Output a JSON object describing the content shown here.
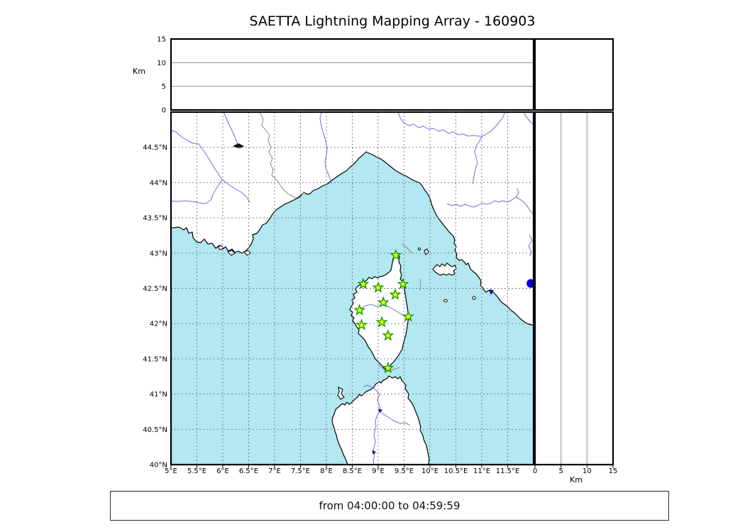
{
  "title": "SAETTA Lightning Mapping Array - 160903",
  "footer": {
    "time_range": "from 04:00:00 to 04:59:59"
  },
  "colors": {
    "sea": "#b3e7f2",
    "land": "#ffffff",
    "coast": "#000000",
    "river": "#6f6fd8",
    "admin_border": "#8a8a8a",
    "map_grid": "#777777",
    "panel_grid": "#8f8f8f",
    "station_fill": "#ffff00",
    "station_edge": "#009900",
    "event_dot": "#0000d5",
    "lake": "#00188c"
  },
  "chart_data": {
    "type": "scatter",
    "title": "SAETTA Lightning Mapping Array - 160903",
    "subtitle": "from 04:00:00 to 04:59:59",
    "layout": "LMA three-panel: altitude-vs-longitude (top), map (center), altitude-vs-latitude (right), empty corner panel",
    "map_panel": {
      "lon_range": [
        5,
        12
      ],
      "lat_range": [
        40,
        45
      ],
      "grid": true,
      "lon_ticks": [
        {
          "label": "5°E",
          "value": 5
        },
        {
          "label": "5.5°E",
          "value": 5.5
        },
        {
          "label": "6°E",
          "value": 6
        },
        {
          "label": "6.5°E",
          "value": 6.5
        },
        {
          "label": "7°E",
          "value": 7
        },
        {
          "label": "7.5°E",
          "value": 7.5
        },
        {
          "label": "8°E",
          "value": 8
        },
        {
          "label": "8.5°E",
          "value": 8.5
        },
        {
          "label": "9°E",
          "value": 9
        },
        {
          "label": "9.5°E",
          "value": 9.5
        },
        {
          "label": "10°E",
          "value": 10
        },
        {
          "label": "10.5°E",
          "value": 10.5
        },
        {
          "label": "11°E",
          "value": 11
        },
        {
          "label": "11.5°E",
          "value": 11.5
        }
      ],
      "lat_ticks": [
        {
          "label": "44.5°N",
          "value": 44.5
        },
        {
          "label": "44°N",
          "value": 44
        },
        {
          "label": "43.5°N",
          "value": 43.5
        },
        {
          "label": "43°N",
          "value": 43
        },
        {
          "label": "42.5°N",
          "value": 42.5
        },
        {
          "label": "42°N",
          "value": 42
        },
        {
          "label": "41.5°N",
          "value": 41.5
        },
        {
          "label": "41°N",
          "value": 41
        },
        {
          "label": "40.5°N",
          "value": 40.5
        },
        {
          "label": "40°N",
          "value": 40
        }
      ],
      "marker": "star",
      "stations": [
        {
          "lon": 9.34,
          "lat": 42.97
        },
        {
          "lon": 8.71,
          "lat": 42.56
        },
        {
          "lon": 9.0,
          "lat": 42.51
        },
        {
          "lon": 9.48,
          "lat": 42.56
        },
        {
          "lon": 9.33,
          "lat": 42.41
        },
        {
          "lon": 9.1,
          "lat": 42.3
        },
        {
          "lon": 8.64,
          "lat": 42.19
        },
        {
          "lon": 9.58,
          "lat": 42.1
        },
        {
          "lon": 8.68,
          "lat": 41.98
        },
        {
          "lon": 9.07,
          "lat": 42.02
        },
        {
          "lon": 9.19,
          "lat": 41.83
        },
        {
          "lon": 9.19,
          "lat": 41.37
        }
      ],
      "event_point": {
        "lon": 11.95,
        "lat": 42.57
      }
    },
    "altitude_panel_top": {
      "ylabel": "Km",
      "ticks": [
        0,
        5,
        10,
        15
      ],
      "range": [
        0,
        15
      ],
      "points": []
    },
    "altitude_panel_right": {
      "xlabel": "Km",
      "ticks": [
        0,
        5,
        10,
        15
      ],
      "range": [
        0,
        15
      ],
      "points": []
    },
    "corner_panel": {
      "points": []
    }
  }
}
